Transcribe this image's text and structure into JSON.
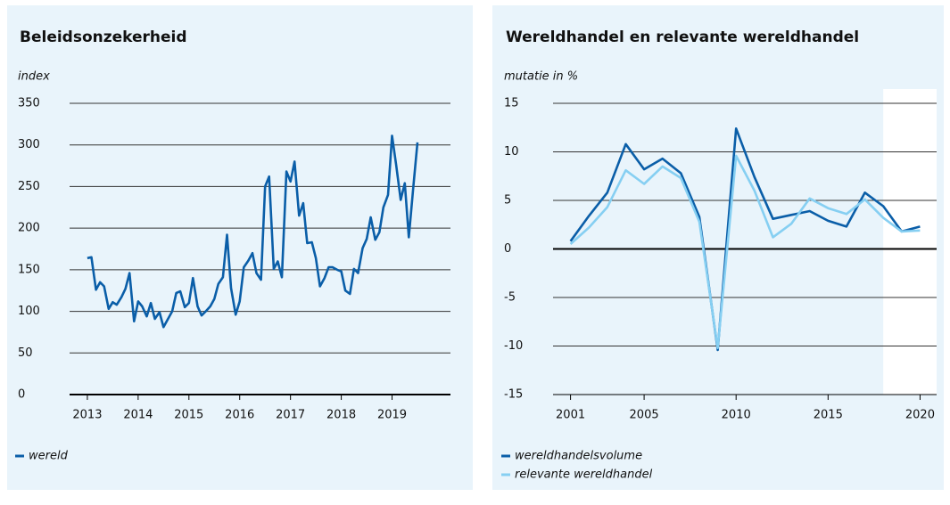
{
  "chart_data": [
    {
      "type": "line",
      "title": "Beleidsonzekerheid",
      "y_label": "index",
      "x": [
        2013.0,
        2013.08,
        2013.17,
        2013.25,
        2013.33,
        2013.42,
        2013.5,
        2013.58,
        2013.67,
        2013.75,
        2013.83,
        2013.92,
        2014.0,
        2014.08,
        2014.17,
        2014.25,
        2014.33,
        2014.42,
        2014.5,
        2014.58,
        2014.67,
        2014.75,
        2014.83,
        2014.92,
        2015.0,
        2015.08,
        2015.17,
        2015.25,
        2015.33,
        2015.42,
        2015.5,
        2015.58,
        2015.67,
        2015.75,
        2015.83,
        2015.92,
        2016.0,
        2016.08,
        2016.17,
        2016.25,
        2016.33,
        2016.42,
        2016.5,
        2016.58,
        2016.67,
        2016.75,
        2016.83,
        2016.92,
        2017.0,
        2017.08,
        2017.17,
        2017.25,
        2017.33,
        2017.42,
        2017.5,
        2017.58,
        2017.67,
        2017.75,
        2017.83,
        2017.92,
        2018.0,
        2018.08,
        2018.17,
        2018.25,
        2018.33,
        2018.42,
        2018.5,
        2018.58,
        2018.67,
        2018.75,
        2018.83,
        2018.92,
        2019.0,
        2019.08,
        2019.17,
        2019.25,
        2019.33,
        2019.42,
        2019.5
      ],
      "series": [
        {
          "name": "wereld",
          "color": "#0a5ea8",
          "values": [
            164,
            165,
            126,
            135,
            130,
            103,
            111,
            108,
            117,
            127,
            146,
            88,
            112,
            106,
            94,
            110,
            91,
            99,
            81,
            90,
            100,
            122,
            124,
            105,
            110,
            140,
            106,
            95,
            100,
            106,
            115,
            133,
            141,
            192,
            128,
            96,
            112,
            153,
            161,
            170,
            146,
            138,
            250,
            262,
            151,
            160,
            141,
            268,
            256,
            280,
            215,
            230,
            182,
            183,
            164,
            130,
            140,
            153,
            153,
            150,
            148,
            125,
            121,
            151,
            146,
            176,
            187,
            213,
            186,
            195,
            225,
            240,
            311,
            276,
            234,
            254,
            189,
            250,
            303
          ]
        }
      ],
      "xlim": [
        2012.65,
        2020.15
      ],
      "xticks": [
        2013,
        2014,
        2015,
        2016,
        2017,
        2018,
        2019
      ],
      "ylim": [
        0,
        350
      ],
      "yticks": [
        0,
        50,
        100,
        150,
        200,
        250,
        300,
        350
      ],
      "grid": true
    },
    {
      "type": "line",
      "title": "Wereldhandel en relevante wereldhandel",
      "y_label": "mutatie in %",
      "x": [
        2001,
        2002,
        2003,
        2004,
        2005,
        2006,
        2007,
        2008,
        2009,
        2010,
        2011,
        2012,
        2013,
        2014,
        2015,
        2016,
        2017,
        2018,
        2019,
        2020
      ],
      "series": [
        {
          "name": "wereldhandelsvolume",
          "color": "#0a5ea8",
          "values": [
            0.8,
            3.4,
            5.8,
            10.8,
            8.2,
            9.3,
            7.8,
            3.3,
            -10.4,
            12.4,
            7.4,
            3.1,
            3.5,
            3.9,
            2.9,
            2.3,
            5.8,
            4.4,
            1.8,
            2.3
          ]
        },
        {
          "name": "relevante wereldhandel",
          "color": "#86cff2",
          "values": [
            0.5,
            2.2,
            4.3,
            8.1,
            6.7,
            8.5,
            7.3,
            2.8,
            -10.2,
            9.6,
            6.0,
            1.2,
            2.6,
            5.2,
            4.2,
            3.6,
            5.1,
            3.2,
            1.8,
            1.9
          ]
        }
      ],
      "xlim": [
        2000.05,
        2020.9
      ],
      "xticks": [
        2001,
        2005,
        2010,
        2015,
        2020
      ],
      "ylim": [
        -15,
        15
      ],
      "yticks": [
        -15,
        -10,
        -5,
        0,
        5,
        10,
        15
      ],
      "grid": true,
      "forecast_from": 2018
    }
  ]
}
